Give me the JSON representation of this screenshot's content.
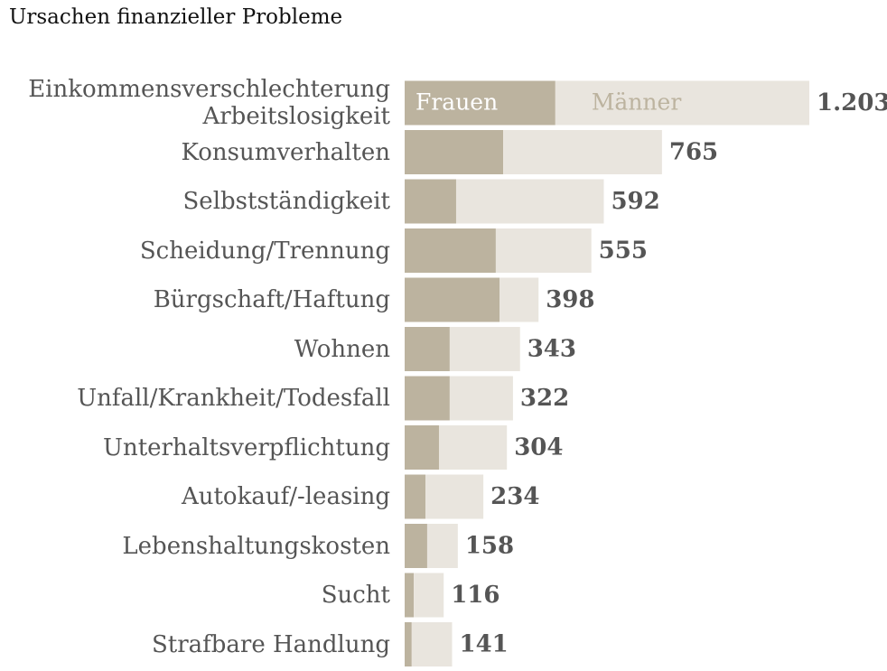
{
  "chart_data": {
    "type": "stacked_barh",
    "title": "Ursachen finanzieller Probleme",
    "categories": [
      "Einkommensverschlechterung\nArbeitslosigkeit",
      "Konsumverhalten",
      "Selbstständigkeit",
      "Scheidung/Trennung",
      "Bürgschaft/Haftung",
      "Wohnen",
      "Unfall/Krankheit/Todesfall",
      "Unterhaltsverpflichtung",
      "Autokauf/-leasing",
      "Lebenshaltungskosten",
      "Sucht",
      "Strafbare Handlung"
    ],
    "series": [
      {
        "name": "Frauen",
        "color": "#bcb39f",
        "values": [
          448,
          293,
          153,
          271,
          282,
          134,
          134,
          102,
          62,
          67,
          27,
          21
        ]
      },
      {
        "name": "Männer",
        "color": "#e9e5de",
        "values": [
          755,
          472,
          439,
          284,
          116,
          209,
          188,
          202,
          172,
          91,
          89,
          120
        ]
      }
    ],
    "values": [
      1203,
      765,
      592,
      555,
      398,
      343,
      322,
      304,
      234,
      158,
      116,
      141
    ],
    "value_labels": [
      "1.203",
      "765",
      "592",
      "555",
      "398",
      "343",
      "322",
      "304",
      "234",
      "158",
      "116",
      "141"
    ],
    "xlim": [
      0,
      1203
    ]
  }
}
